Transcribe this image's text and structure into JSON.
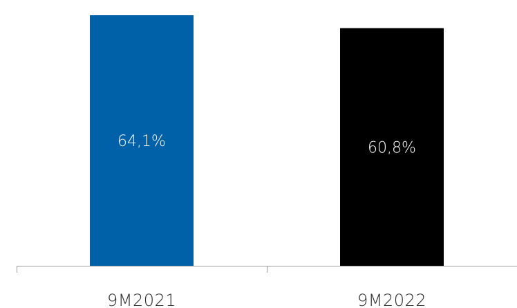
{
  "chart_data": {
    "type": "bar",
    "categories": [
      "9M2021",
      "9M2022"
    ],
    "values": [
      64.1,
      60.8
    ],
    "data_labels": [
      "64,1%",
      "60,8%"
    ],
    "bar_colors": [
      "#0060A8",
      "#000000"
    ],
    "label_color": "#FFFFFF",
    "axis_color": "#9A9A9A",
    "tick_label_color": "#2B2B2B",
    "ylim": [
      0,
      68
    ],
    "grid": false,
    "legend": "none"
  }
}
